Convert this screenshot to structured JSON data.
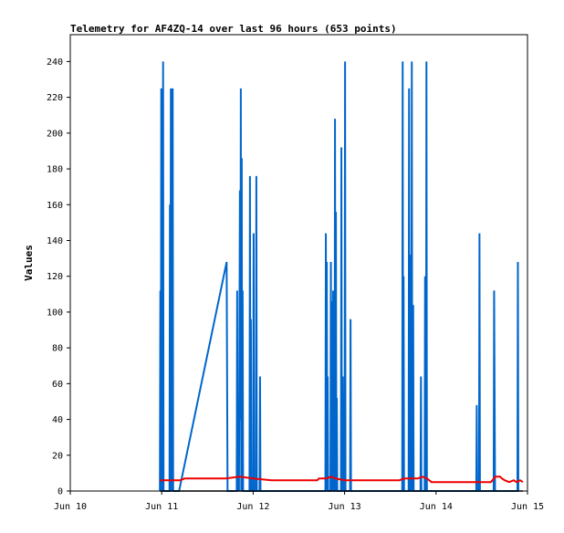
{
  "chart_data": {
    "type": "line",
    "title": "Telemetry for AF4ZQ-14 over last 96 hours (653 points)",
    "xlabel": "",
    "ylabel": "Values",
    "x_unit": "days since Jun 10 00:00",
    "xlim": [
      0,
      5
    ],
    "ylim": [
      0,
      255
    ],
    "x_ticks": [
      {
        "label": "Jun 10",
        "value": 0
      },
      {
        "label": "Jun 11",
        "value": 1
      },
      {
        "label": "Jun 12",
        "value": 2
      },
      {
        "label": "Jun 13",
        "value": 3
      },
      {
        "label": "Jun 14",
        "value": 4
      },
      {
        "label": "Jun 15",
        "value": 5
      }
    ],
    "y_ticks": [
      0,
      20,
      40,
      60,
      80,
      100,
      120,
      140,
      160,
      180,
      200,
      220,
      240
    ],
    "grid": false,
    "legend": "none",
    "series": [
      {
        "color": "#0066cc",
        "points": [
          [
            0.98,
            0
          ],
          [
            0.985,
            112
          ],
          [
            0.99,
            0
          ],
          [
            0.995,
            225
          ],
          [
            1.0,
            0
          ],
          [
            1.005,
            64
          ],
          [
            1.01,
            0
          ],
          [
            1.015,
            240
          ],
          [
            1.02,
            0
          ],
          [
            1.085,
            0
          ],
          [
            1.09,
            160
          ],
          [
            1.095,
            0
          ],
          [
            1.1,
            225
          ],
          [
            1.105,
            0
          ],
          [
            1.11,
            112
          ],
          [
            1.115,
            0
          ],
          [
            1.12,
            225
          ],
          [
            1.125,
            0
          ],
          [
            1.19,
            0
          ],
          [
            1.71,
            128
          ],
          [
            1.715,
            64
          ],
          [
            1.72,
            0
          ],
          [
            1.82,
            0
          ],
          [
            1.825,
            112
          ],
          [
            1.83,
            0
          ],
          [
            1.84,
            32
          ],
          [
            1.845,
            0
          ],
          [
            1.855,
            168
          ],
          [
            1.86,
            40
          ],
          [
            1.865,
            225
          ],
          [
            1.87,
            0
          ],
          [
            1.875,
            186
          ],
          [
            1.88,
            0
          ],
          [
            1.885,
            112
          ],
          [
            1.89,
            0
          ],
          [
            1.96,
            0
          ],
          [
            1.965,
            176
          ],
          [
            1.97,
            0
          ],
          [
            1.975,
            96
          ],
          [
            1.98,
            0
          ],
          [
            2.0,
            0
          ],
          [
            2.005,
            144
          ],
          [
            2.01,
            0
          ],
          [
            2.03,
            0
          ],
          [
            2.035,
            176
          ],
          [
            2.04,
            0
          ],
          [
            2.07,
            0
          ],
          [
            2.075,
            64
          ],
          [
            2.08,
            0
          ],
          [
            2.79,
            0
          ],
          [
            2.795,
            144
          ],
          [
            2.8,
            0
          ],
          [
            2.805,
            128
          ],
          [
            2.81,
            0
          ],
          [
            2.815,
            64
          ],
          [
            2.82,
            0
          ],
          [
            2.845,
            0
          ],
          [
            2.85,
            128
          ],
          [
            2.855,
            0
          ],
          [
            2.86,
            106
          ],
          [
            2.865,
            0
          ],
          [
            2.875,
            112
          ],
          [
            2.88,
            0
          ],
          [
            2.89,
            0
          ],
          [
            2.895,
            208
          ],
          [
            2.9,
            0
          ],
          [
            2.905,
            156
          ],
          [
            2.91,
            0
          ],
          [
            2.915,
            52
          ],
          [
            2.92,
            0
          ],
          [
            2.96,
            0
          ],
          [
            2.965,
            192
          ],
          [
            2.97,
            0
          ],
          [
            2.98,
            64
          ],
          [
            2.985,
            0
          ],
          [
            3.0,
            0
          ],
          [
            3.005,
            240
          ],
          [
            3.01,
            0
          ],
          [
            3.06,
            0
          ],
          [
            3.065,
            96
          ],
          [
            3.07,
            0
          ],
          [
            3.63,
            0
          ],
          [
            3.635,
            240
          ],
          [
            3.64,
            0
          ],
          [
            3.645,
            120
          ],
          [
            3.65,
            0
          ],
          [
            3.7,
            0
          ],
          [
            3.705,
            225
          ],
          [
            3.71,
            0
          ],
          [
            3.715,
            132
          ],
          [
            3.72,
            0
          ],
          [
            3.73,
            0
          ],
          [
            3.735,
            240
          ],
          [
            3.74,
            0
          ],
          [
            3.75,
            104
          ],
          [
            3.755,
            0
          ],
          [
            3.83,
            0
          ],
          [
            3.835,
            64
          ],
          [
            3.84,
            0
          ],
          [
            3.875,
            0
          ],
          [
            3.88,
            120
          ],
          [
            3.885,
            0
          ],
          [
            3.89,
            0
          ],
          [
            3.895,
            240
          ],
          [
            3.9,
            0
          ],
          [
            4.44,
            0
          ],
          [
            4.445,
            48
          ],
          [
            4.45,
            0
          ],
          [
            4.47,
            0
          ],
          [
            4.475,
            144
          ],
          [
            4.48,
            0
          ],
          [
            4.63,
            0
          ],
          [
            4.635,
            112
          ],
          [
            4.64,
            56
          ],
          [
            4.645,
            0
          ],
          [
            4.89,
            0
          ],
          [
            4.895,
            128
          ],
          [
            4.9,
            0
          ]
        ]
      },
      {
        "color": "#ee0000",
        "points": [
          [
            0.98,
            6
          ],
          [
            1.2,
            6
          ],
          [
            1.25,
            7
          ],
          [
            1.6,
            7
          ],
          [
            1.7,
            7
          ],
          [
            1.85,
            8
          ],
          [
            2.0,
            7
          ],
          [
            2.2,
            6
          ],
          [
            2.5,
            6
          ],
          [
            2.7,
            6
          ],
          [
            2.72,
            7
          ],
          [
            2.8,
            7
          ],
          [
            2.85,
            8
          ],
          [
            2.9,
            7
          ],
          [
            3.0,
            6
          ],
          [
            3.3,
            6
          ],
          [
            3.6,
            6
          ],
          [
            3.65,
            7
          ],
          [
            3.7,
            7
          ],
          [
            3.8,
            7
          ],
          [
            3.85,
            8
          ],
          [
            3.9,
            7
          ],
          [
            3.95,
            5
          ],
          [
            4.2,
            5
          ],
          [
            4.5,
            5
          ],
          [
            4.6,
            5
          ],
          [
            4.65,
            8
          ],
          [
            4.7,
            8
          ],
          [
            4.72,
            7
          ],
          [
            4.75,
            6
          ],
          [
            4.8,
            5
          ],
          [
            4.85,
            6
          ],
          [
            4.88,
            5
          ],
          [
            4.92,
            6
          ],
          [
            4.95,
            5
          ]
        ]
      },
      {
        "color": "#000000",
        "points": [
          [
            0.98,
            0
          ],
          [
            4.95,
            0
          ]
        ]
      }
    ]
  }
}
